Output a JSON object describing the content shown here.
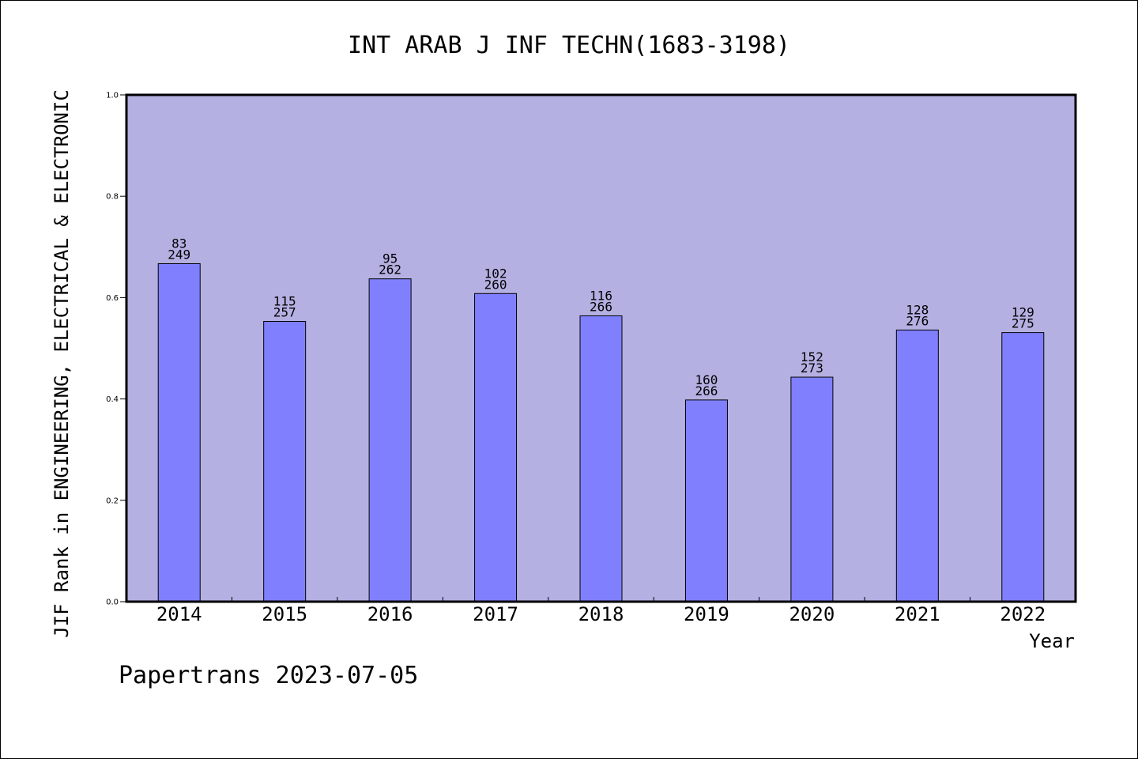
{
  "chart_data": {
    "type": "bar",
    "title": "INT ARAB J INF TECHN(1683-3198)",
    "ylabel": "JIF Rank in ENGINEERING, ELECTRICAL & ELECTRONIC",
    "xlabel": "Year",
    "ylim": [
      0,
      1.0
    ],
    "yticks": [
      "0.0",
      "0.2",
      "0.4",
      "0.6",
      "0.8",
      "1.0"
    ],
    "grid": false,
    "categories": [
      "2014",
      "2015",
      "2016",
      "2017",
      "2018",
      "2019",
      "2020",
      "2021",
      "2022"
    ],
    "values": [
      0.667,
      0.553,
      0.637,
      0.608,
      0.564,
      0.398,
      0.443,
      0.536,
      0.531
    ],
    "rank": [
      "83",
      "115",
      "95",
      "102",
      "116",
      "160",
      "152",
      "128",
      "129"
    ],
    "total": [
      "249",
      "257",
      "262",
      "260",
      "266",
      "266",
      "273",
      "276",
      "275"
    ],
    "colors": {
      "plot_bg": "#b5b0e2",
      "bar": "#8080ff",
      "axis": "#000000"
    }
  },
  "footer": {
    "credit": "Papertrans 2023-07-05"
  }
}
